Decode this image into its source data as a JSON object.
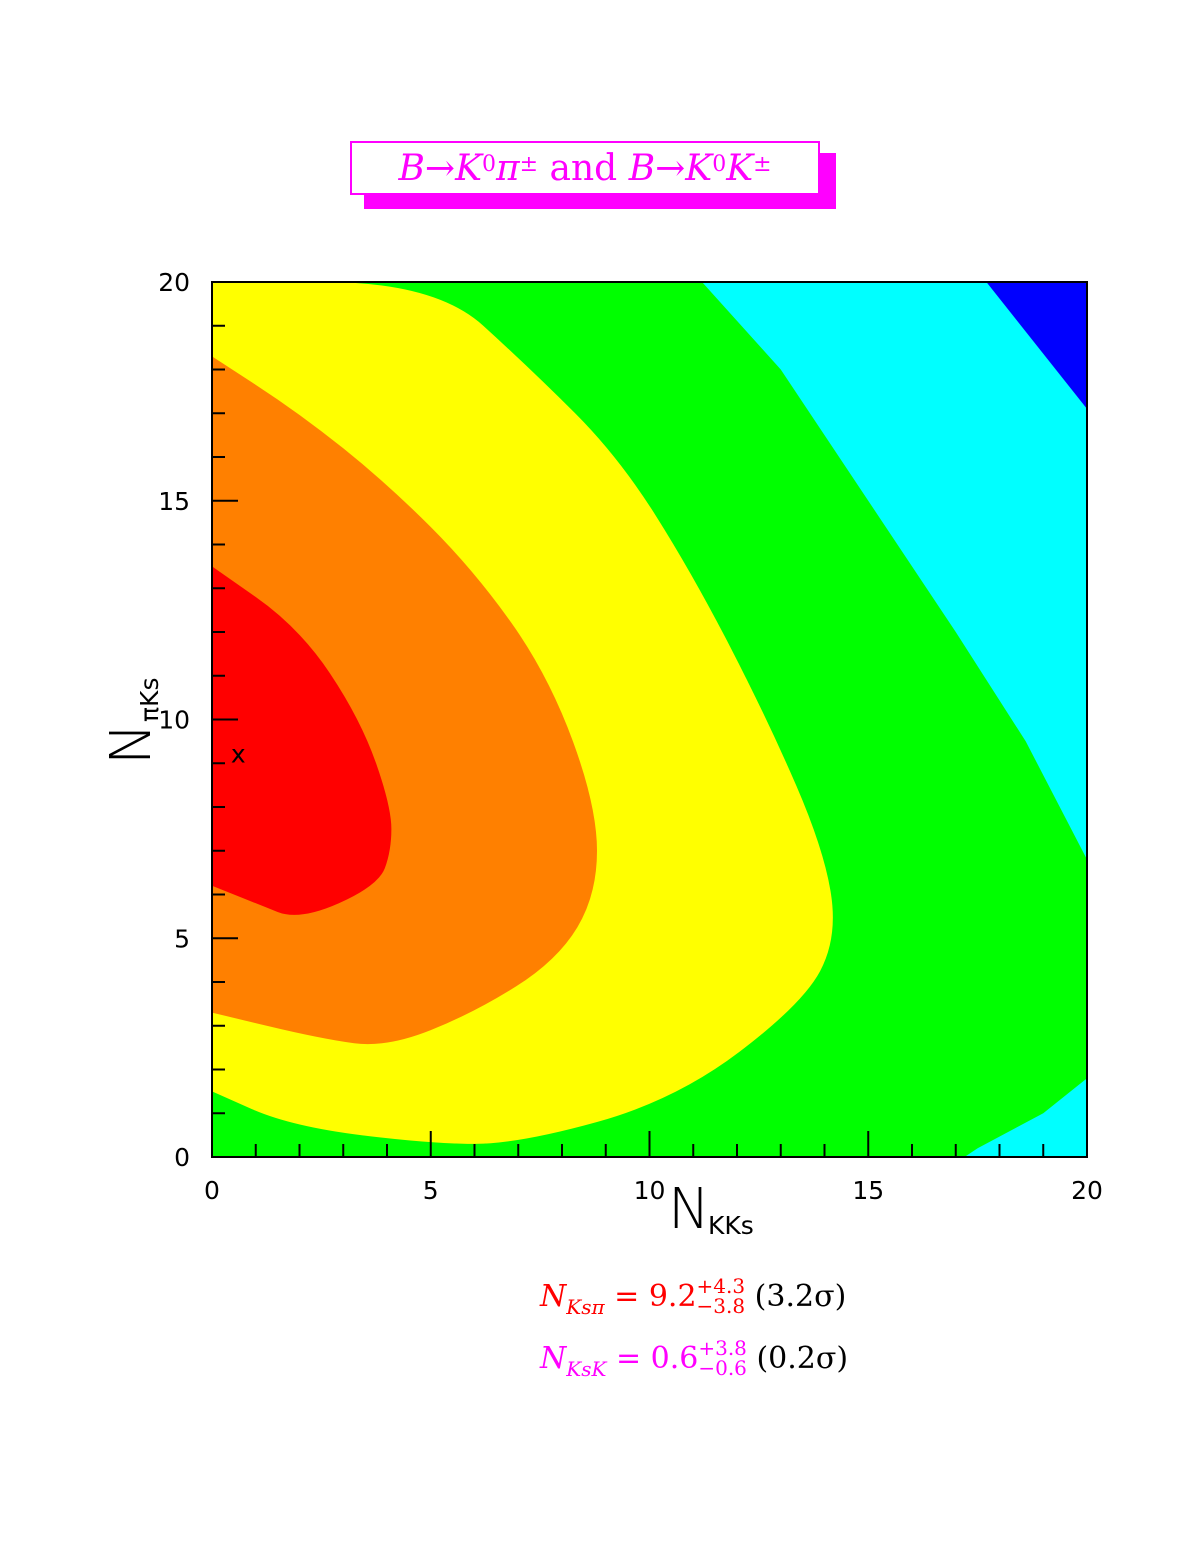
{
  "title": {
    "part1": "B→K",
    "sup1": "0",
    "part2": "π",
    "sup2": "±",
    "mid": "and",
    "part3": "B→K",
    "sup3": "0",
    "part4": "K",
    "sup4": "±"
  },
  "chart_data": {
    "type": "heatmap",
    "subtype": "filled-contour",
    "title": "B→K⁰π± and B→K⁰K±",
    "xlabel": {
      "main": "N",
      "sub": "KKs"
    },
    "ylabel": {
      "main": "N",
      "sub": "πKs"
    },
    "xlim": [
      0,
      20
    ],
    "ylim": [
      0,
      20
    ],
    "x_ticks": [
      "0",
      "5",
      "10",
      "15",
      "20"
    ],
    "y_ticks": [
      "0",
      "5",
      "10",
      "15",
      "20"
    ],
    "best_fit": {
      "x": 0.6,
      "y": 9.2,
      "marker": "x"
    },
    "contour_colors": [
      "#ff0000",
      "#ff8000",
      "#ffff00",
      "#00ff00",
      "#00ffff",
      "#0000ff"
    ],
    "contours": [
      {
        "color": "#ff0000",
        "points": [
          [
            0,
            13.5
          ],
          [
            2,
            12.1
          ],
          [
            3.4,
            10
          ],
          [
            4.1,
            8
          ],
          [
            4.1,
            7
          ],
          [
            3.8,
            6.2
          ],
          [
            2,
            5.4
          ],
          [
            1,
            5.8
          ],
          [
            0,
            6.2
          ]
        ]
      },
      {
        "color": "#ff8000",
        "points": [
          [
            0,
            18.3
          ],
          [
            2,
            17
          ],
          [
            4,
            15.4
          ],
          [
            6,
            13.4
          ],
          [
            7.7,
            11
          ],
          [
            8.8,
            8
          ],
          [
            8.8,
            6
          ],
          [
            7.9,
            4.5
          ],
          [
            6,
            3.3
          ],
          [
            4,
            2.5
          ],
          [
            2.5,
            2.7
          ],
          [
            0,
            3.3
          ]
        ]
      },
      {
        "color": "#ffff00",
        "points": [
          [
            0,
            20
          ],
          [
            5.1,
            20
          ],
          [
            7.3,
            18
          ],
          [
            9.3,
            16
          ],
          [
            11,
            13.3
          ],
          [
            12.7,
            10
          ],
          [
            14,
            7
          ],
          [
            14.3,
            5
          ],
          [
            13.5,
            3.5
          ],
          [
            10.6,
            1.3
          ],
          [
            7,
            0.3
          ],
          [
            5,
            0.3
          ],
          [
            1.8,
            0.7
          ],
          [
            0,
            1.5
          ]
        ]
      },
      {
        "color": "#00ff00",
        "points": [
          [
            5.1,
            20
          ],
          [
            11.2,
            20
          ],
          [
            13,
            18
          ],
          [
            15,
            15
          ],
          [
            17,
            12
          ],
          [
            18.6,
            9.5
          ],
          [
            20,
            6.8
          ],
          [
            20,
            1.8
          ],
          [
            19,
            1
          ],
          [
            17.5,
            0.2
          ],
          [
            17.2,
            0
          ]
        ]
      },
      {
        "color": "#00ffff",
        "points": [
          [
            11.2,
            20
          ],
          [
            17.7,
            20
          ],
          [
            20,
            17.1
          ],
          [
            20,
            1.5
          ],
          [
            19.4,
            0.9
          ],
          [
            17.2,
            0
          ]
        ]
      },
      {
        "color": "#0000ff",
        "points": [
          [
            17.7,
            20
          ],
          [
            20,
            20
          ],
          [
            20,
            17.1
          ]
        ]
      }
    ],
    "results": [
      {
        "lhs": "N",
        "sub": "Ksπ",
        "eq": "= 9.2",
        "up": "+4.3",
        "down": "−3.8",
        "sig": "(3.2σ)",
        "color": "#ff0000"
      },
      {
        "lhs": "N",
        "sub": "KsK",
        "eq": "= 0.6",
        "up": "+3.8",
        "down": "−0.6",
        "sig": "(0.2σ)",
        "color": "#ff00ff"
      }
    ]
  }
}
